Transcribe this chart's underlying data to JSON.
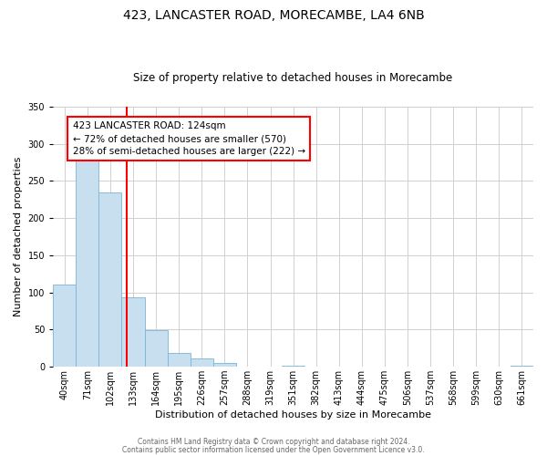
{
  "title": "423, LANCASTER ROAD, MORECAMBE, LA4 6NB",
  "subtitle": "Size of property relative to detached houses in Morecambe",
  "xlabel": "Distribution of detached houses by size in Morecambe",
  "ylabel": "Number of detached properties",
  "bar_labels": [
    "40sqm",
    "71sqm",
    "102sqm",
    "133sqm",
    "164sqm",
    "195sqm",
    "226sqm",
    "257sqm",
    "288sqm",
    "319sqm",
    "351sqm",
    "382sqm",
    "413sqm",
    "444sqm",
    "475sqm",
    "506sqm",
    "537sqm",
    "568sqm",
    "599sqm",
    "630sqm",
    "661sqm"
  ],
  "bar_values": [
    111,
    279,
    235,
    94,
    49,
    18,
    11,
    5,
    0,
    0,
    2,
    0,
    0,
    0,
    0,
    0,
    0,
    0,
    0,
    0,
    2
  ],
  "bar_color": "#c8dff0",
  "bar_edge_color": "#7ab5d8",
  "ylim": [
    0,
    350
  ],
  "yticks": [
    0,
    50,
    100,
    150,
    200,
    250,
    300,
    350
  ],
  "property_line_x": 2.71,
  "annotation_line1": "423 LANCASTER ROAD: 124sqm",
  "annotation_line2": "← 72% of detached houses are smaller (570)",
  "annotation_line3": "28% of semi-detached houses are larger (222) →",
  "annotation_box_color": "white",
  "annotation_box_edge_color": "red",
  "line_color": "red",
  "footer_line1": "Contains HM Land Registry data © Crown copyright and database right 2024.",
  "footer_line2": "Contains public sector information licensed under the Open Government Licence v3.0.",
  "bg_color": "white",
  "grid_color": "#d0d0d0",
  "title_fontsize": 10,
  "subtitle_fontsize": 8.5,
  "ylabel_fontsize": 8,
  "xlabel_fontsize": 8,
  "tick_fontsize": 7,
  "annotation_fontsize": 7.5,
  "footer_fontsize": 5.5
}
